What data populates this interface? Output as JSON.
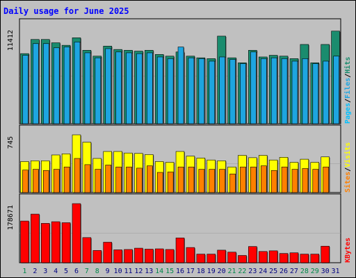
{
  "chart_data": {
    "type": "bar",
    "title": "Daily usage for June 2025",
    "categories": [
      "1",
      "2",
      "3",
      "4",
      "5",
      "6",
      "7",
      "8",
      "9",
      "10",
      "11",
      "12",
      "13",
      "14",
      "15",
      "16",
      "17",
      "18",
      "19",
      "20",
      "21",
      "22",
      "23",
      "24",
      "25",
      "26",
      "27",
      "28",
      "29",
      "30",
      "31"
    ],
    "weekend_days": [
      "1",
      "7",
      "8",
      "14",
      "15",
      "21",
      "22",
      "28",
      "29"
    ],
    "panels": [
      {
        "id": "pages-files-hits",
        "max_label": "11412",
        "ymax": 11412,
        "legend": [
          "Pages",
          "/",
          "Files",
          "/",
          "Hits"
        ],
        "series": [
          {
            "name": "Hits",
            "color": "#1a8c6e",
            "values": [
              8400,
              10100,
              10100,
              9700,
              9400,
              10300,
              8800,
              8100,
              9300,
              8900,
              8800,
              8700,
              8800,
              8300,
              8100,
              8600,
              8100,
              7900,
              7800,
              10500,
              7900,
              7300,
              8800,
              8000,
              8200,
              8100,
              7800,
              9500,
              7300,
              9500,
              11100
            ]
          },
          {
            "name": "Files",
            "color": "#1ea5e0",
            "values": [
              8200,
              9600,
              9600,
              9100,
              9200,
              9800,
              8500,
              7900,
              9000,
              8600,
              8500,
              8400,
              8500,
              8000,
              7800,
              9200,
              7900,
              7800,
              7500,
              8000,
              7700,
              7200,
              8600,
              7800,
              7900,
              7800,
              7500,
              7800,
              7200,
              7500,
              8100
            ]
          },
          {
            "name": "Pages",
            "color": "#00c0ff",
            "values": [
              0,
              0,
              0,
              0,
              0,
              0,
              0,
              0,
              0,
              0,
              0,
              0,
              0,
              0,
              0,
              0,
              0,
              0,
              0,
              0,
              0,
              0,
              0,
              0,
              0,
              0,
              0,
              0,
              0,
              0,
              0
            ]
          }
        ]
      },
      {
        "id": "visits-sites",
        "max_label": "745",
        "ymax": 745,
        "legend": [
          "Sites",
          "/",
          "Visits"
        ],
        "series": [
          {
            "name": "Visits",
            "color": "#ffff00",
            "values": [
              400,
              410,
              410,
              485,
              500,
              745,
              650,
              440,
              530,
              530,
              510,
              505,
              490,
              400,
              390,
              530,
              470,
              445,
              420,
              410,
              330,
              480,
              450,
              480,
              420,
              455,
              390,
              430,
              390,
              460,
              0
            ]
          },
          {
            "name": "Sites",
            "color": "#ff8000",
            "values": [
              290,
              300,
              285,
              300,
              330,
              440,
              360,
              300,
              355,
              330,
              330,
              315,
              345,
              260,
              265,
              330,
              330,
              300,
              300,
              300,
              240,
              330,
              330,
              345,
              285,
              330,
              300,
              310,
              300,
              330,
              0
            ]
          }
        ]
      },
      {
        "id": "kbytes",
        "max_label": "178671",
        "ymax": 178671,
        "legend": [
          "KBytes"
        ],
        "series": [
          {
            "name": "KBytes",
            "color": "#ff0000",
            "values": [
              126000,
              147000,
              119000,
              124000,
              121000,
              178671,
              76000,
              37000,
              62000,
              39000,
              40000,
              44000,
              41000,
              42000,
              40000,
              75000,
              46000,
              26000,
              26000,
              38000,
              32000,
              22000,
              49000,
              34000,
              36000,
              28000,
              30000,
              26000,
              26000,
              50000,
              0
            ]
          }
        ]
      }
    ]
  },
  "colors": {
    "background": "#c0c0c0",
    "plot_background": "#c0c0c0",
    "border": "#000000",
    "title": "#0000ff",
    "weekday_label": "#000080",
    "weekend_label": "#00884a"
  }
}
